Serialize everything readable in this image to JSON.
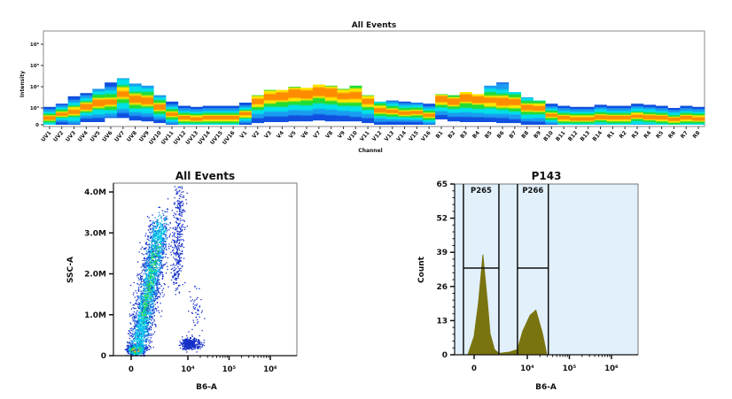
{
  "chart_data": [
    {
      "type": "heatmap",
      "title": "All Events",
      "xlabel": "Channel",
      "ylabel": "Intensity",
      "yticks": [
        "0",
        "10³",
        "10⁴",
        "10⁵",
        "10⁶"
      ],
      "channels": [
        "UV1",
        "UV2",
        "UV3",
        "UV4",
        "UV5",
        "UV6",
        "UV7",
        "UV8",
        "UV9",
        "UV10",
        "UV11",
        "UV12",
        "UV13",
        "UV14",
        "UV15",
        "UV16",
        "V1",
        "V2",
        "V3",
        "V4",
        "V5",
        "V6",
        "V7",
        "V8",
        "V9",
        "V10",
        "V11",
        "V12",
        "V13",
        "V14",
        "V15",
        "V16",
        "B1",
        "B2",
        "B3",
        "B4",
        "B5",
        "B6",
        "B7",
        "B8",
        "B9",
        "B10",
        "B11",
        "B12",
        "B13",
        "B14",
        "R1",
        "R2",
        "R3",
        "R4",
        "R5",
        "R6",
        "R7",
        "R8"
      ],
      "log10_top": [
        3.05,
        3.2,
        3.55,
        3.7,
        3.9,
        4.2,
        4.4,
        4.15,
        4.05,
        3.6,
        3.3,
        3.1,
        3.05,
        3.1,
        3.1,
        3.1,
        3.25,
        3.6,
        3.85,
        3.85,
        4.0,
        3.95,
        4.1,
        4.05,
        3.9,
        4.05,
        3.6,
        3.3,
        3.35,
        3.3,
        3.25,
        3.2,
        3.65,
        3.6,
        3.75,
        3.65,
        4.05,
        4.2,
        3.75,
        3.5,
        3.35,
        3.2,
        3.1,
        3.05,
        3.05,
        3.15,
        3.1,
        3.1,
        3.2,
        3.15,
        3.1,
        3.0,
        3.1,
        3.05
      ],
      "log10_peak": [
        2.6,
        2.8,
        2.9,
        3.05,
        3.25,
        3.3,
        3.65,
        3.4,
        3.35,
        3.05,
        2.8,
        2.6,
        2.55,
        2.6,
        2.6,
        2.6,
        2.8,
        3.3,
        3.5,
        3.55,
        3.65,
        3.65,
        3.8,
        3.7,
        3.55,
        3.6,
        3.3,
        2.95,
        2.9,
        2.85,
        2.85,
        2.75,
        3.4,
        3.3,
        3.5,
        3.4,
        3.35,
        3.3,
        3.25,
        3.0,
        3.0,
        2.75,
        2.6,
        2.55,
        2.55,
        2.65,
        2.6,
        2.6,
        2.7,
        2.65,
        2.6,
        2.5,
        2.6,
        2.55
      ],
      "log10_bottom": [
        0,
        0,
        0,
        2.2,
        2.2,
        2.6,
        2.6,
        2.4,
        2.3,
        2.0,
        0,
        0,
        0,
        0,
        0,
        0,
        0,
        2.0,
        2.2,
        2.2,
        2.3,
        2.3,
        2.4,
        2.3,
        2.3,
        2.3,
        2.0,
        0,
        0,
        0,
        0,
        0,
        2.5,
        2.3,
        2.2,
        2.2,
        2.2,
        2.0,
        2.0,
        0,
        0,
        0,
        0,
        0,
        0,
        0,
        0,
        0,
        0,
        0,
        0,
        0,
        0,
        0
      ]
    },
    {
      "type": "scatter",
      "title": "All Events",
      "xlabel": "B6-A",
      "ylabel": "SSC-A",
      "xscale": "biexponential",
      "xticks": [
        "0",
        "10⁴",
        "10⁵",
        "10⁶"
      ],
      "yticks": [
        "0",
        "1.0M",
        "2.0M",
        "3.0M",
        "4.0M"
      ],
      "ylim": [
        0,
        4200000
      ],
      "populations": [
        {
          "x": [
            60,
            60
          ],
          "y": [
            150000,
            150000
          ],
          "sx": 0.35,
          "sy": 60000,
          "n": 700,
          "density": "high"
        },
        {
          "x": [
            80,
            900
          ],
          "y": [
            150000,
            3200000
          ],
          "sx": 0.45,
          "sy": 250000,
          "n": 2600,
          "density": "medium"
        },
        {
          "x": [
            3500,
            5000
          ],
          "y": [
            1800000,
            4100000
          ],
          "sx": 0.25,
          "sy": 200000,
          "n": 350,
          "density": "low"
        },
        {
          "x": [
            11000,
            11000
          ],
          "y": [
            300000,
            300000
          ],
          "sx": 0.35,
          "sy": 70000,
          "n": 380,
          "density": "low"
        },
        {
          "x": [
            15000,
            15000
          ],
          "y": [
            1100000,
            1100000
          ],
          "sx": 0.2,
          "sy": 250000,
          "n": 50,
          "density": "low"
        }
      ]
    },
    {
      "type": "area",
      "title": "P143",
      "xlabel": "B6-A",
      "ylabel": "Count",
      "xscale": "biexponential",
      "xticks": [
        "0",
        "10⁴",
        "10⁵",
        "10⁶"
      ],
      "yticks": [
        "0",
        "13",
        "26",
        "39",
        "52",
        "65"
      ],
      "ylim": [
        0,
        65
      ],
      "fill": "#7a7410",
      "background": "#e2f0fb",
      "x": [
        -90,
        0,
        63,
        135,
        233,
        309,
        476,
        726,
        1950,
        4050,
        6600,
        11600,
        16000,
        23000,
        29000
      ],
      "count": [
        0,
        7,
        20,
        38,
        20,
        8,
        2,
        0.5,
        1,
        2,
        9,
        15,
        17,
        8,
        0
      ],
      "gates": [
        {
          "name": "P265",
          "range": [
            -172,
            726
          ],
          "level": 33
        },
        {
          "name": "P266",
          "range": [
            4050,
            31600
          ],
          "level": 33
        }
      ]
    }
  ]
}
